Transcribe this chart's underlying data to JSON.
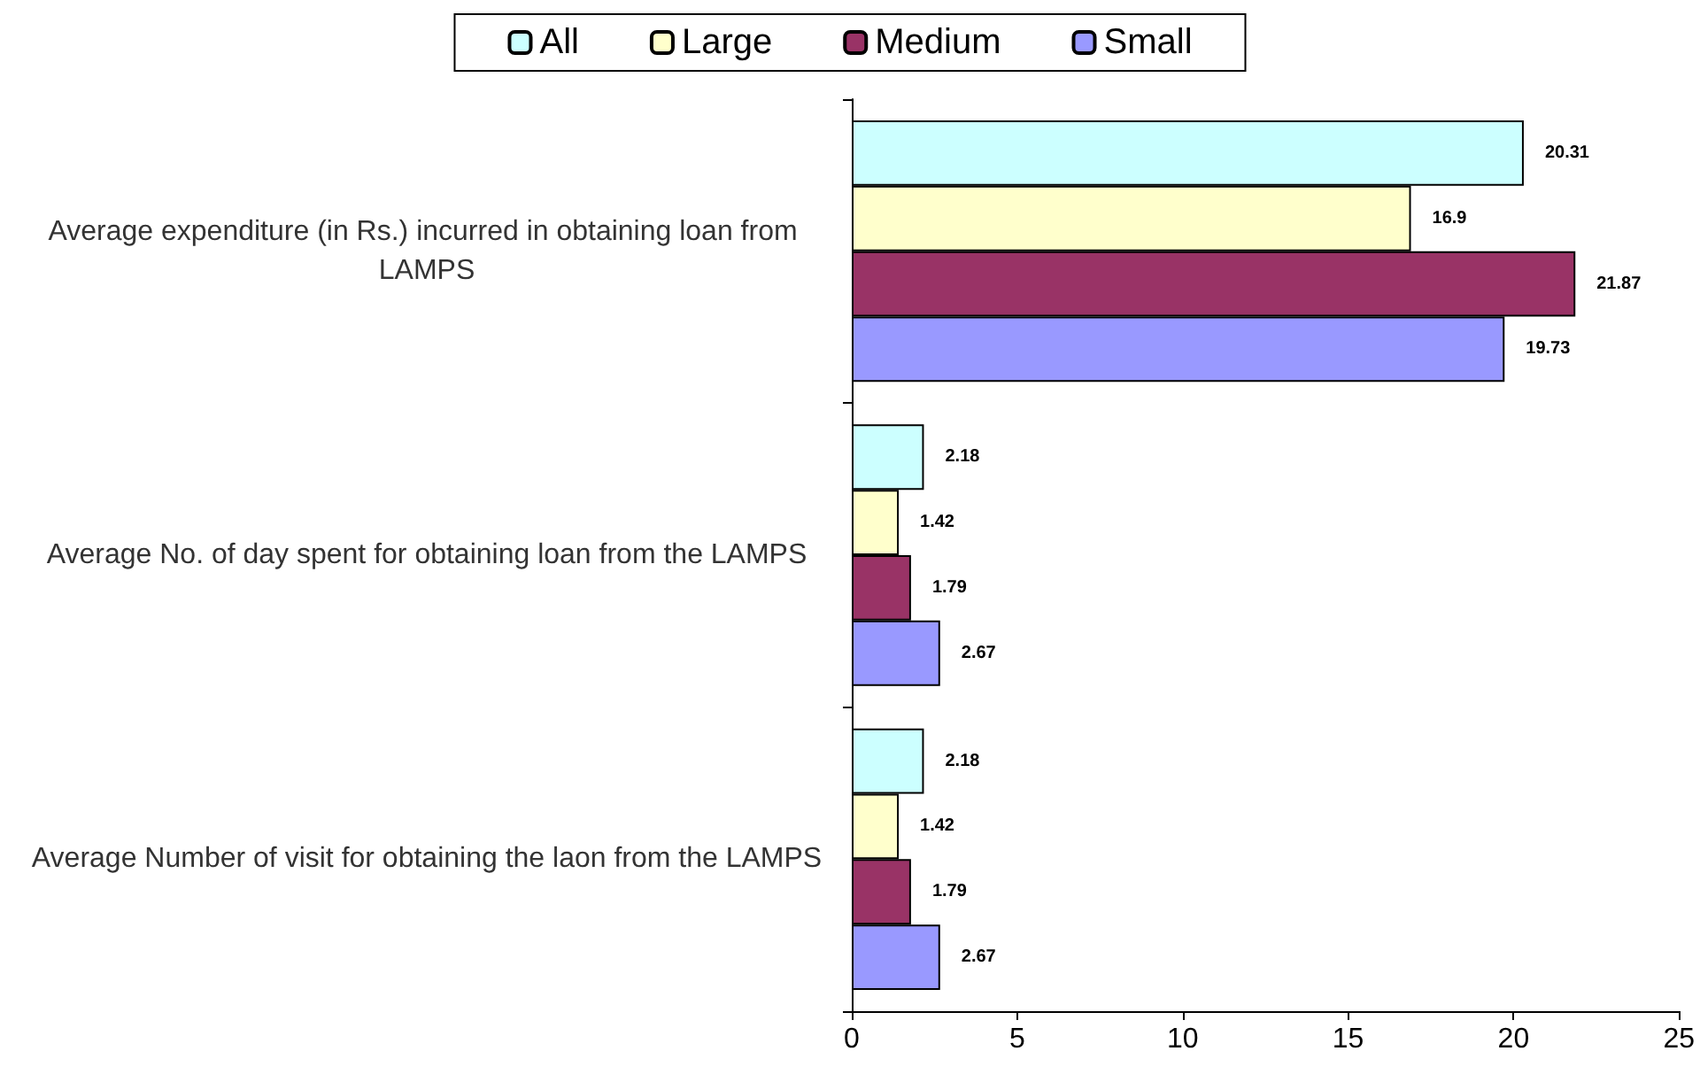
{
  "chart_data": {
    "type": "bar",
    "orientation": "horizontal",
    "categories": [
      "Average expenditure (in Rs.) incurred in obtaining loan from LAMPS",
      "Average No. of day spent for obtaining loan from the LAMPS",
      "Average Number of visit for obtaining the laon from the LAMPS"
    ],
    "series": [
      {
        "name": "All",
        "color": "#ccffff",
        "values": [
          20.31,
          2.18,
          2.18
        ]
      },
      {
        "name": "Large",
        "color": "#ffffcc",
        "values": [
          16.9,
          1.42,
          1.42
        ]
      },
      {
        "name": "Medium",
        "color": "#993366",
        "values": [
          21.87,
          1.79,
          1.79
        ]
      },
      {
        "name": "Small",
        "color": "#9999ff",
        "values": [
          19.73,
          2.67,
          2.67
        ]
      }
    ],
    "xlim": [
      0,
      25
    ],
    "xticks": [
      0,
      5,
      10,
      15,
      20,
      25
    ],
    "data_labels": true,
    "legend": "top",
    "grid": false
  }
}
